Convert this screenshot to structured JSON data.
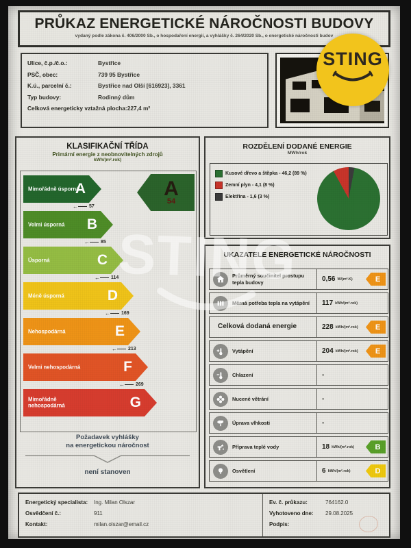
{
  "header": {
    "title": "PRŮKAZ ENERGETICKÉ NÁROČNOSTI BUDOVY",
    "subtitle": "vydaný podle zákona č. 406/2000 Sb., o hospodaření energií, a vyhlášky č. 264/2020 Sb., o energetické náročnosti budov"
  },
  "logo": {
    "text": "STING",
    "color": "#f2c41c"
  },
  "watermark": {
    "text": "STING"
  },
  "building_info": {
    "rows": [
      {
        "label": "Ulice, č.p./č.o.:",
        "value": "Bystřice"
      },
      {
        "label": "PSČ, obec:",
        "value": "739 95 Bystřice"
      },
      {
        "label": "K.ú., parcelní č.:",
        "value": "Bystřice nad Olší [616923], 3361"
      },
      {
        "label": "Typ budovy:",
        "value": "Rodinný dům"
      },
      {
        "label": "Celková energeticky vztažná plocha:",
        "value": "227,4 m²"
      }
    ]
  },
  "classification": {
    "title": "KLASIFIKAČNÍ TŘÍDA",
    "subtitle": "Primární energie z neobnovitelných zdrojů",
    "unit": "kWh/(m².rok)",
    "bands": [
      {
        "letter": "A",
        "label": "Mimořádně úsporná",
        "color": "#23662c",
        "width": 96,
        "threshold": "57"
      },
      {
        "letter": "B",
        "label": "Velmi úsporná",
        "color": "#4e8c27",
        "width": 113,
        "threshold": "85"
      },
      {
        "letter": "C",
        "label": "Úsporná",
        "color": "#94bc43",
        "width": 128,
        "threshold": "114"
      },
      {
        "letter": "D",
        "label": "Méně úsporná",
        "color": "#efc319",
        "width": 143,
        "threshold": "169"
      },
      {
        "letter": "E",
        "label": "Nehospodárná",
        "color": "#ee9317",
        "width": 153,
        "threshold": "213"
      },
      {
        "letter": "F",
        "label": "Velmi nehospodárná",
        "color": "#e05426",
        "width": 164,
        "threshold": "269"
      },
      {
        "letter": "G",
        "label": "Mimořádně nehospodárná",
        "color": "#d63c2e",
        "width": 177,
        "threshold": null
      }
    ],
    "rating": {
      "letter": "A",
      "value": "54",
      "color": "#2b632b"
    },
    "requirement_line1": "Požadavek vyhlášky",
    "requirement_line2": "na energetickou náročnost",
    "requirement_result": "není stanoven"
  },
  "delivered_energy": {
    "title": "ROZDĚLENÍ DODANÉ ENERGIE",
    "unit": "MWh/rok",
    "legend": [
      {
        "label": "Kusové dřevo a štěpka - 46,2 (89 %)",
        "color": "#2b7031",
        "pct": 89
      },
      {
        "label": "Zemní plyn - 4,1 (8 %)",
        "color": "#c8342a",
        "pct": 8
      },
      {
        "label": "Elektřina - 1,6 (3 %)",
        "color": "#3b3b3b",
        "pct": 3
      }
    ]
  },
  "indicators": {
    "title": "UKAZATELE ENERGETICKÉ NÁROČNOSTI",
    "rows": [
      {
        "icon": "building-heat-transfer-icon",
        "label": "Průměrný součinitel prostupu tepla budovy",
        "value": "0,56",
        "unit": "W/(m².K)",
        "badge": "E",
        "badge_color": "#ee9317"
      },
      {
        "icon": "heating-demand-icon",
        "label": "Měrná potřeba tepla na vytápění",
        "value": "117",
        "unit": "kWh/(m².rok)",
        "badge": null
      },
      {
        "icon": null,
        "label": "Celková dodaná energie",
        "value": "228",
        "unit": "kWh/(m².rok)",
        "badge": "E",
        "badge_color": "#ee9317"
      },
      {
        "icon": "heating-icon",
        "label": "Vytápění",
        "value": "204",
        "unit": "kWh/(m².rok)",
        "badge": "E",
        "badge_color": "#ee9317"
      },
      {
        "icon": "cooling-icon",
        "label": "Chlazení",
        "value": "-",
        "unit": "",
        "badge": null
      },
      {
        "icon": "ventilation-icon",
        "label": "Nucené větrání",
        "value": "-",
        "unit": "",
        "badge": null
      },
      {
        "icon": "humidity-icon",
        "label": "Úprava vlhkosti",
        "value": "-",
        "unit": "",
        "badge": null
      },
      {
        "icon": "hot-water-icon",
        "label": "Příprava teplé vody",
        "value": "18",
        "unit": "kWh/(m².rok)",
        "badge": "B",
        "badge_color": "#59a029"
      },
      {
        "icon": "lighting-icon",
        "label": "Osvětlení",
        "value": "6",
        "unit": "kWh/(m².rok)",
        "badge": "D",
        "badge_color": "#eec80e"
      }
    ]
  },
  "footer": {
    "left": [
      {
        "label": "Energetický specialista:",
        "value": "Ing. Milan Olszar"
      },
      {
        "label": "Osvědčení č.:",
        "value": "911"
      },
      {
        "label": "Kontakt:",
        "value": "milan.olszar@email.cz"
      }
    ],
    "right": [
      {
        "label": "Ev. č. průkazu:",
        "value": "764162.0"
      },
      {
        "label": "Vyhotoveno dne:",
        "value": "29.08.2025"
      },
      {
        "label": "Podpis:",
        "value": ""
      }
    ]
  },
  "chart_data": {
    "type": "pie",
    "title": "ROZDĚLENÍ DODANÉ ENERGIE",
    "unit": "MWh/rok",
    "slices": [
      {
        "label": "Kusové dřevo a štěpka",
        "value_mwh": 46.2,
        "pct": 89,
        "color": "#2b7031"
      },
      {
        "label": "Zemní plyn",
        "value_mwh": 4.1,
        "pct": 8,
        "color": "#c8342a"
      },
      {
        "label": "Elektřina",
        "value_mwh": 1.6,
        "pct": 3,
        "color": "#3b3b3b"
      }
    ],
    "legend_position": "left"
  }
}
